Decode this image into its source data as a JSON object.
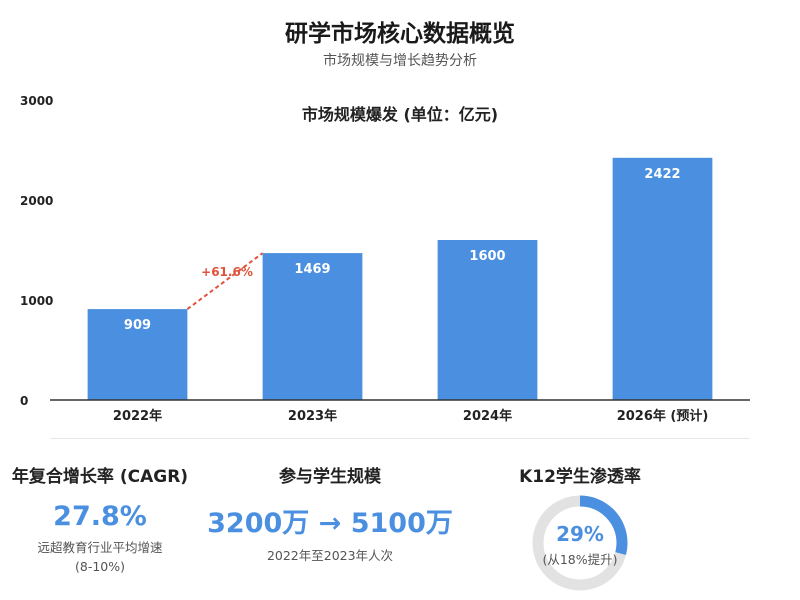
{
  "header": {
    "title": "研学市场核心数据概览",
    "subtitle": "市场规模与增长趋势分析"
  },
  "chart_data": {
    "type": "bar",
    "title": "市场规模爆发 (单位：亿元)",
    "categories": [
      "2022年",
      "2023年",
      "2024年",
      "2026年 (预计)"
    ],
    "values": [
      909,
      1469,
      1600,
      2422
    ],
    "data_labels": [
      "909",
      "1469",
      "1600",
      "2422"
    ],
    "ylim": [
      0,
      3000
    ],
    "yticks": [
      0,
      1000,
      2000,
      3000
    ],
    "grid": false,
    "bar_color": "#4a8fe0",
    "annotation": {
      "text": "+61.6%",
      "from_category": "2022年",
      "to_category": "2023年",
      "color": "#e0533a"
    }
  },
  "stats": {
    "cagr": {
      "title": "年复合增长率 (CAGR)",
      "value": "27.8%",
      "desc_line1": "远超教育行业平均增速",
      "desc_line2": "(8-10%)"
    },
    "scale": {
      "title": "参与学生规模",
      "value": "3200万 → 5100万",
      "desc": "2022年至2023年人次"
    },
    "k12": {
      "title": "K12学生渗透率",
      "value": "29%",
      "fraction": 0.29,
      "note": "(从18%提升)",
      "ring_color": "#4a8fe0",
      "track_color": "#e2e2e2"
    }
  }
}
